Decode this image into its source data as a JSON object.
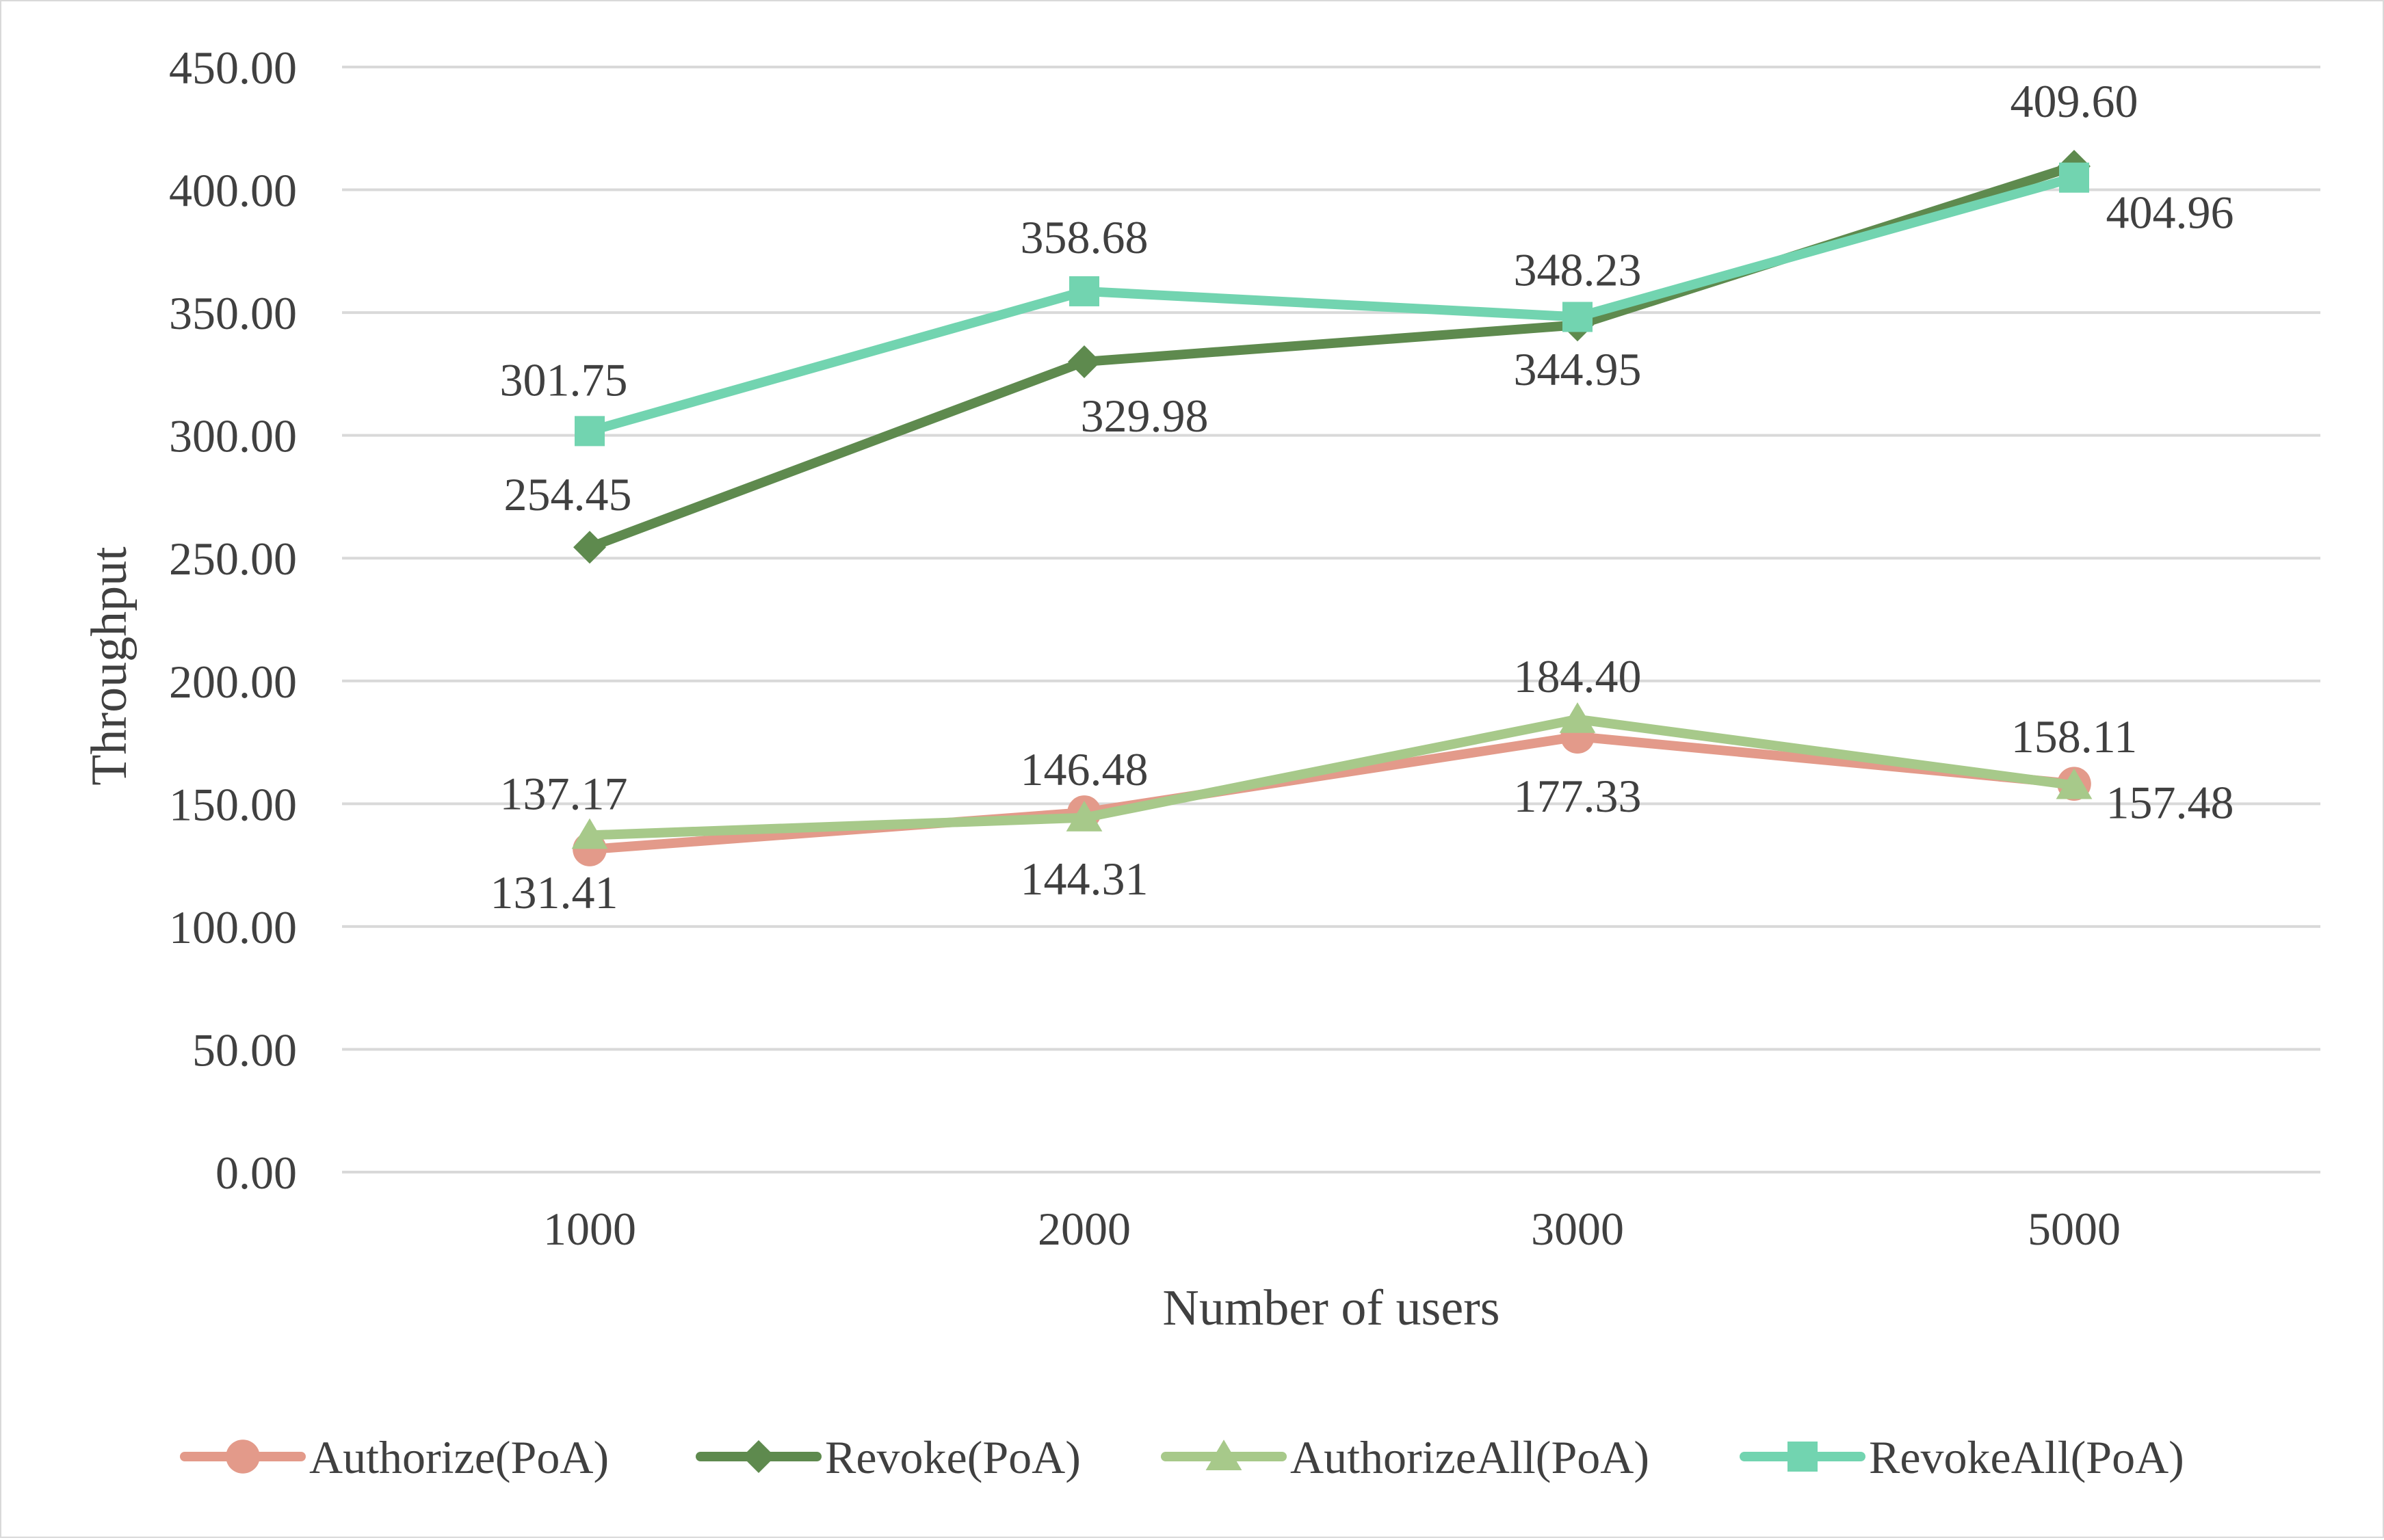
{
  "chart_data": {
    "type": "line",
    "title": "",
    "xlabel": "Number of users",
    "ylabel": "Throughput",
    "categories": [
      "1000",
      "2000",
      "3000",
      "5000"
    ],
    "ylim": [
      0,
      450
    ],
    "yticks": [
      "0.00",
      "50.00",
      "100.00",
      "150.00",
      "200.00",
      "250.00",
      "300.00",
      "350.00",
      "400.00",
      "450.00"
    ],
    "grid": true,
    "legend_position": "bottom",
    "series": [
      {
        "name": "Authorize(PoA)",
        "color": "#E39A8A",
        "marker": "circle",
        "values": [
          131.41,
          146.48,
          177.33,
          158.11
        ],
        "labels": [
          "131.41",
          "146.48",
          "177.33",
          "158.11"
        ]
      },
      {
        "name": "Revoke(PoA)",
        "color": "#5E8A4E",
        "marker": "diamond",
        "values": [
          254.45,
          329.98,
          344.95,
          409.6
        ],
        "labels": [
          "254.45",
          "329.98",
          "344.95",
          "409.60"
        ]
      },
      {
        "name": "AuthorizeAll(PoA)",
        "color": "#A7C98A",
        "marker": "triangle",
        "values": [
          137.17,
          144.31,
          184.4,
          157.48
        ],
        "labels": [
          "137.17",
          "144.31",
          "184.40",
          "157.48"
        ]
      },
      {
        "name": "RevokeAll(PoA)",
        "color": "#72D4B0",
        "marker": "square",
        "values": [
          301.75,
          358.68,
          348.23,
          404.96
        ],
        "labels": [
          "301.75",
          "358.68",
          "348.23",
          "404.96"
        ]
      }
    ]
  }
}
